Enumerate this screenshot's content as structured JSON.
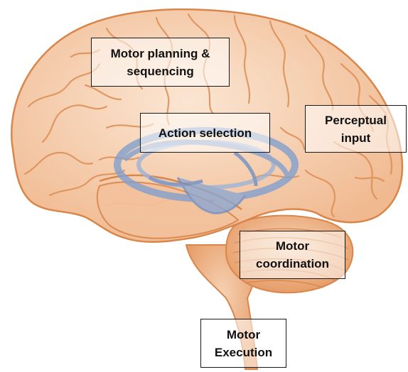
{
  "labels": {
    "motor_planning": [
      "Motor planning &",
      "sequencing"
    ],
    "action_selection": [
      "Action selection"
    ],
    "perceptual_input": [
      "Perceptual",
      "input"
    ],
    "motor_coordination": [
      "Motor",
      "coordination"
    ],
    "motor_execution": [
      "Motor",
      "Execution"
    ]
  },
  "colors": {
    "cortex_fill": "#f6cfae",
    "cortex_stroke": "#d9864b",
    "cerebellum_fill": "#efb58c",
    "basal_ganglia": "#7f9fcf",
    "box_border": "#1a1a1a",
    "text": "#111111"
  }
}
